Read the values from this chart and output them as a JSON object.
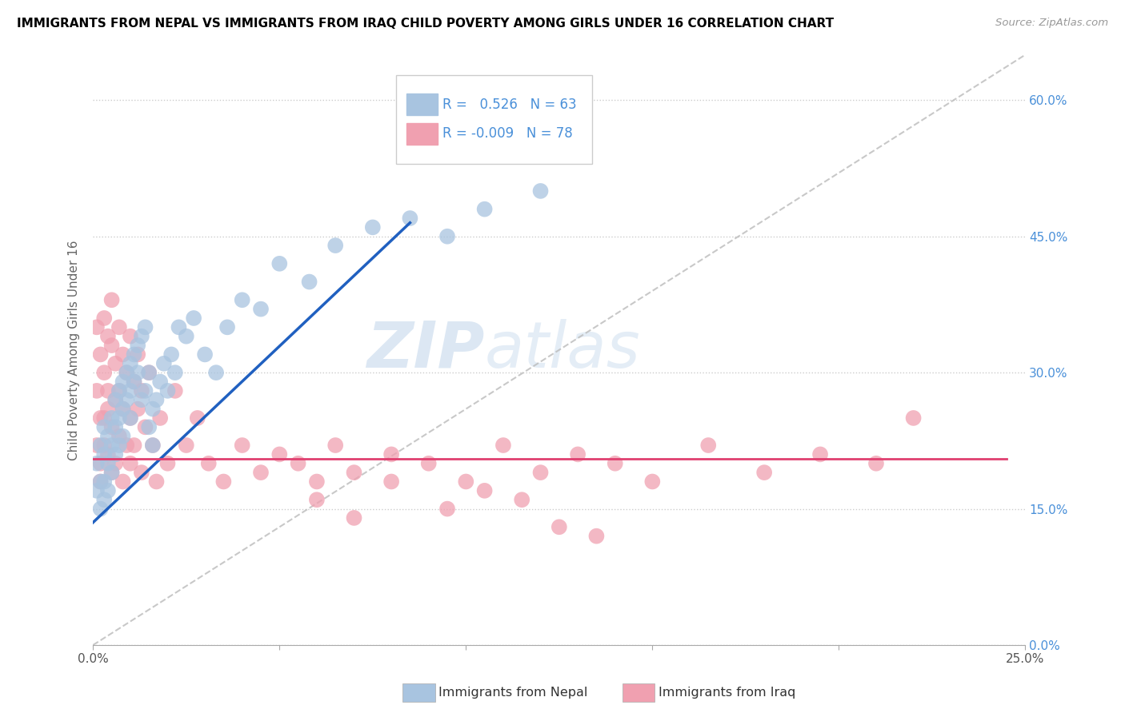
{
  "title": "IMMIGRANTS FROM NEPAL VS IMMIGRANTS FROM IRAQ CHILD POVERTY AMONG GIRLS UNDER 16 CORRELATION CHART",
  "source": "Source: ZipAtlas.com",
  "ylabel": "Child Poverty Among Girls Under 16",
  "x_min": 0.0,
  "x_max": 0.25,
  "y_min": 0.0,
  "y_max": 0.65,
  "x_ticks": [
    0.0,
    0.05,
    0.1,
    0.15,
    0.2,
    0.25
  ],
  "x_tick_labels": [
    "0.0%",
    "",
    "",
    "",
    "",
    "25.0%"
  ],
  "y_ticks": [
    0.0,
    0.15,
    0.3,
    0.45,
    0.6
  ],
  "y_tick_labels_right": [
    "0.0%",
    "15.0%",
    "30.0%",
    "45.0%",
    "60.0%"
  ],
  "nepal_color": "#a8c4e0",
  "iraq_color": "#f0a0b0",
  "nepal_line_color": "#2060c0",
  "iraq_line_color": "#e04070",
  "trend_line_dashed_color": "#bbbbbb",
  "R_nepal": 0.526,
  "N_nepal": 63,
  "R_iraq": -0.009,
  "N_iraq": 78,
  "watermark_zip": "ZIP",
  "watermark_atlas": "atlas",
  "nepal_scatter_x": [
    0.001,
    0.001,
    0.002,
    0.002,
    0.002,
    0.003,
    0.003,
    0.003,
    0.003,
    0.004,
    0.004,
    0.004,
    0.005,
    0.005,
    0.005,
    0.006,
    0.006,
    0.006,
    0.007,
    0.007,
    0.007,
    0.008,
    0.008,
    0.008,
    0.009,
    0.009,
    0.01,
    0.01,
    0.01,
    0.011,
    0.011,
    0.012,
    0.012,
    0.013,
    0.013,
    0.014,
    0.014,
    0.015,
    0.015,
    0.016,
    0.016,
    0.017,
    0.018,
    0.019,
    0.02,
    0.021,
    0.022,
    0.023,
    0.025,
    0.027,
    0.03,
    0.033,
    0.036,
    0.04,
    0.045,
    0.05,
    0.058,
    0.065,
    0.075,
    0.085,
    0.095,
    0.105,
    0.12
  ],
  "nepal_scatter_y": [
    0.2,
    0.17,
    0.22,
    0.18,
    0.15,
    0.24,
    0.21,
    0.18,
    0.16,
    0.23,
    0.2,
    0.17,
    0.25,
    0.22,
    0.19,
    0.27,
    0.24,
    0.21,
    0.28,
    0.25,
    0.22,
    0.29,
    0.26,
    0.23,
    0.3,
    0.27,
    0.31,
    0.28,
    0.25,
    0.32,
    0.29,
    0.33,
    0.3,
    0.34,
    0.27,
    0.35,
    0.28,
    0.3,
    0.24,
    0.22,
    0.26,
    0.27,
    0.29,
    0.31,
    0.28,
    0.32,
    0.3,
    0.35,
    0.34,
    0.36,
    0.32,
    0.3,
    0.35,
    0.38,
    0.37,
    0.42,
    0.4,
    0.44,
    0.46,
    0.47,
    0.45,
    0.48,
    0.5
  ],
  "iraq_scatter_x": [
    0.001,
    0.001,
    0.001,
    0.002,
    0.002,
    0.002,
    0.002,
    0.003,
    0.003,
    0.003,
    0.003,
    0.004,
    0.004,
    0.004,
    0.004,
    0.005,
    0.005,
    0.005,
    0.005,
    0.006,
    0.006,
    0.006,
    0.007,
    0.007,
    0.007,
    0.008,
    0.008,
    0.008,
    0.009,
    0.009,
    0.01,
    0.01,
    0.01,
    0.011,
    0.011,
    0.012,
    0.012,
    0.013,
    0.013,
    0.014,
    0.015,
    0.016,
    0.017,
    0.018,
    0.02,
    0.022,
    0.025,
    0.028,
    0.031,
    0.035,
    0.04,
    0.045,
    0.05,
    0.055,
    0.06,
    0.065,
    0.07,
    0.08,
    0.09,
    0.1,
    0.11,
    0.12,
    0.13,
    0.14,
    0.15,
    0.165,
    0.18,
    0.195,
    0.21,
    0.22,
    0.06,
    0.07,
    0.08,
    0.095,
    0.105,
    0.115,
    0.125,
    0.135
  ],
  "iraq_scatter_y": [
    0.22,
    0.28,
    0.35,
    0.25,
    0.18,
    0.32,
    0.2,
    0.3,
    0.25,
    0.22,
    0.36,
    0.28,
    0.34,
    0.21,
    0.26,
    0.33,
    0.19,
    0.24,
    0.38,
    0.27,
    0.31,
    0.2,
    0.35,
    0.23,
    0.28,
    0.32,
    0.18,
    0.26,
    0.22,
    0.3,
    0.25,
    0.34,
    0.2,
    0.29,
    0.22,
    0.26,
    0.32,
    0.19,
    0.28,
    0.24,
    0.3,
    0.22,
    0.18,
    0.25,
    0.2,
    0.28,
    0.22,
    0.25,
    0.2,
    0.18,
    0.22,
    0.19,
    0.21,
    0.2,
    0.18,
    0.22,
    0.19,
    0.21,
    0.2,
    0.18,
    0.22,
    0.19,
    0.21,
    0.2,
    0.18,
    0.22,
    0.19,
    0.21,
    0.2,
    0.25,
    0.16,
    0.14,
    0.18,
    0.15,
    0.17,
    0.16,
    0.13,
    0.12
  ]
}
